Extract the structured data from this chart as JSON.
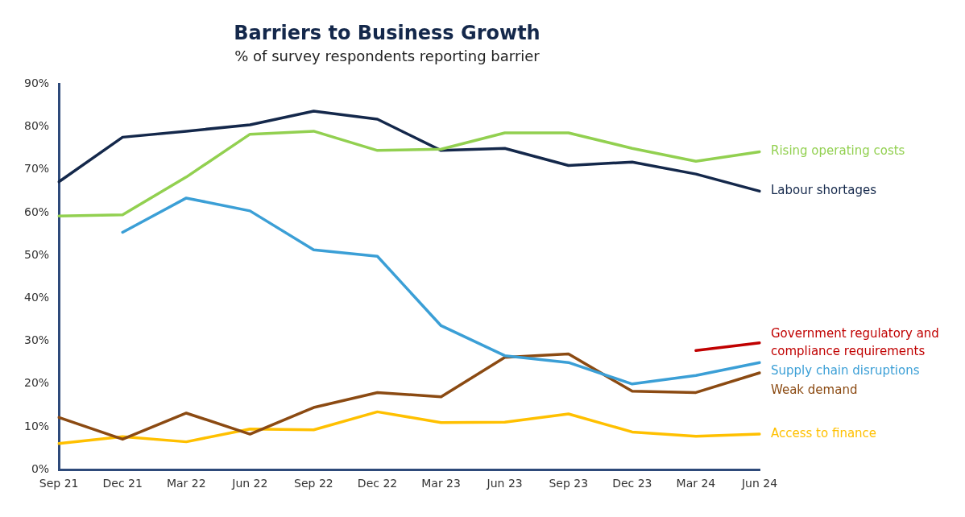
{
  "chart_data": {
    "type": "line",
    "title": "Barriers to Business Growth",
    "subtitle": "% of survey respondents reporting barrier",
    "categories": [
      "Sep 21",
      "Dec 21",
      "Mar 22",
      "Jun 22",
      "Sep 22",
      "Dec 22",
      "Mar 23",
      "Jun 23",
      "Sep 23",
      "Dec 23",
      "Mar 24",
      "Jun 24"
    ],
    "series": [
      {
        "name": "Rising operating costs",
        "color": "#92d050",
        "values": [
          59.2,
          59.5,
          68.3,
          78.3,
          79,
          74.5,
          74.8,
          78.6,
          78.6,
          75,
          72,
          74.2
        ]
      },
      {
        "name": "Labour shortages",
        "color": "#14284b",
        "values": [
          67.2,
          77.6,
          79,
          80.5,
          83.7,
          81.8,
          74.5,
          75,
          71,
          71.8,
          69,
          65
        ]
      },
      {
        "name": "Government regulatory and compliance requirements",
        "color": "#c00000",
        "values": [
          null,
          null,
          null,
          null,
          null,
          null,
          null,
          null,
          null,
          null,
          27.8,
          29.6
        ]
      },
      {
        "name": "Supply chain disruptions",
        "color": "#3b9fd6",
        "values": [
          null,
          55.4,
          63.4,
          60.4,
          51.3,
          49.8,
          33.6,
          26.6,
          25,
          20,
          22,
          25
        ]
      },
      {
        "name": "Weak demand",
        "color": "#8b4a12",
        "values": [
          12.2,
          7.1,
          13.2,
          8.3,
          14.5,
          18,
          17,
          26.2,
          27,
          18.3,
          18,
          22.6
        ]
      },
      {
        "name": "Access to finance",
        "color": "#ffc000",
        "values": [
          6.1,
          7.7,
          6.5,
          9.5,
          9.3,
          13.5,
          11,
          11.1,
          13,
          8.8,
          7.8,
          8.3
        ]
      }
    ],
    "ylim": [
      0,
      90
    ],
    "yticks": [
      {
        "value": 0,
        "label": "0%"
      },
      {
        "value": 10,
        "label": "10%"
      },
      {
        "value": 20,
        "label": "20%"
      },
      {
        "value": 30,
        "label": "30%"
      },
      {
        "value": 40,
        "label": "40%"
      },
      {
        "value": 50,
        "label": "50%"
      },
      {
        "value": 60,
        "label": "60%"
      },
      {
        "value": 70,
        "label": "70%"
      },
      {
        "value": 80,
        "label": "80%"
      },
      {
        "value": 90,
        "label": "90%"
      }
    ],
    "grid": false,
    "legend": false,
    "marker": "none",
    "line_style": "solid"
  }
}
